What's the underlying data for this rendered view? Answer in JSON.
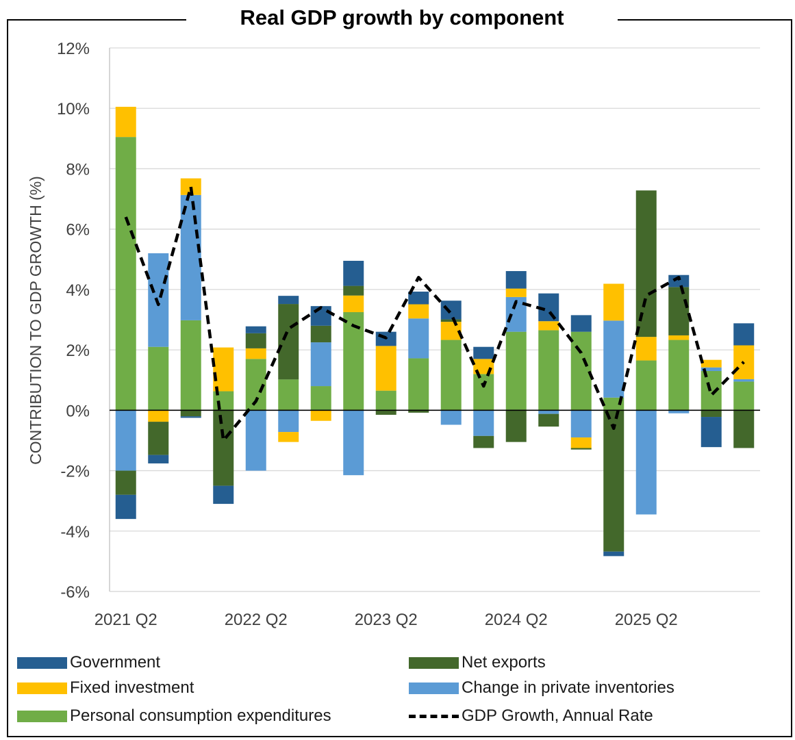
{
  "chart_data": {
    "type": "bar",
    "stacked": true,
    "title": "Real GDP growth by component",
    "xlabel": "",
    "ylabel": "CONTRIBUTION TO GDP GROWTH (%)",
    "ylim": [
      -6,
      12
    ],
    "yticks": [
      "12%",
      "10%",
      "8%",
      "6%",
      "4%",
      "2%",
      "0%",
      "-2%",
      "-4%",
      "-6%"
    ],
    "ytick_values": [
      12,
      10,
      8,
      6,
      4,
      2,
      0,
      -2,
      -4,
      -6
    ],
    "grid": true,
    "legend_position": "bottom",
    "categories": [
      "2021 Q2",
      "2021 Q3",
      "2021 Q4",
      "2022 Q1",
      "2022 Q2",
      "2022 Q3",
      "2022 Q4",
      "2023 Q1",
      "2023 Q2",
      "2023 Q3",
      "2023 Q4",
      "2024 Q1",
      "2024 Q2",
      "2024 Q3",
      "2024 Q4",
      "2025 Q1",
      "2025 Q2",
      "2025 Q3",
      "2025 Q4",
      "2026 Q1"
    ],
    "xtick_labels": [
      "2021 Q2",
      "2022 Q2",
      "2023 Q2",
      "2024 Q2",
      "2025 Q2"
    ],
    "xtick_indices": [
      0,
      4,
      8,
      12,
      16
    ],
    "series": [
      {
        "name": "Personal consumption expenditures",
        "color": "#70ad47",
        "values": [
          9.05,
          2.1,
          2.98,
          0.63,
          1.7,
          1.02,
          0.8,
          3.25,
          0.65,
          1.72,
          2.33,
          1.2,
          2.6,
          2.65,
          2.6,
          0.42,
          1.65,
          2.33,
          1.3,
          0.95
        ]
      },
      {
        "name": "Change in private inventories",
        "color": "#5b9bd5",
        "values": [
          -2.0,
          3.1,
          4.15,
          0.0,
          -2.0,
          -0.72,
          1.45,
          -2.15,
          0.0,
          1.32,
          -0.48,
          -0.85,
          1.15,
          -0.12,
          -0.9,
          2.55,
          -3.45,
          -0.1,
          0.12,
          0.08
        ]
      },
      {
        "name": "Fixed investment",
        "color": "#ffc000",
        "values": [
          1.0,
          -0.38,
          0.55,
          1.45,
          0.35,
          -0.33,
          -0.35,
          0.55,
          1.48,
          0.47,
          0.6,
          0.5,
          0.28,
          0.3,
          -0.35,
          1.22,
          0.78,
          0.15,
          0.25,
          1.12
        ]
      },
      {
        "name": "Net exports",
        "color": "#43682b",
        "values": [
          -0.8,
          -1.1,
          -0.2,
          -2.5,
          0.5,
          2.5,
          0.55,
          0.32,
          -0.15,
          -0.08,
          0.08,
          -0.4,
          -1.05,
          -0.42,
          -0.05,
          -4.68,
          4.85,
          1.6,
          -0.22,
          -1.25
        ]
      },
      {
        "name": "Government",
        "color": "#255e91",
        "values": [
          -0.8,
          -0.28,
          -0.05,
          -0.6,
          0.23,
          0.27,
          0.65,
          0.83,
          0.47,
          0.42,
          0.62,
          0.4,
          0.58,
          0.92,
          0.55,
          -0.15,
          0.0,
          0.4,
          -1.0,
          0.73
        ]
      }
    ],
    "line": {
      "name": "GDP Growth, Annual Rate",
      "color": "#000000",
      "values": [
        6.4,
        3.5,
        7.4,
        -1.0,
        0.3,
        2.7,
        3.4,
        2.8,
        2.4,
        4.4,
        3.2,
        0.8,
        3.6,
        3.3,
        1.9,
        -0.6,
        3.8,
        4.4,
        0.5,
        1.6
      ]
    }
  }
}
